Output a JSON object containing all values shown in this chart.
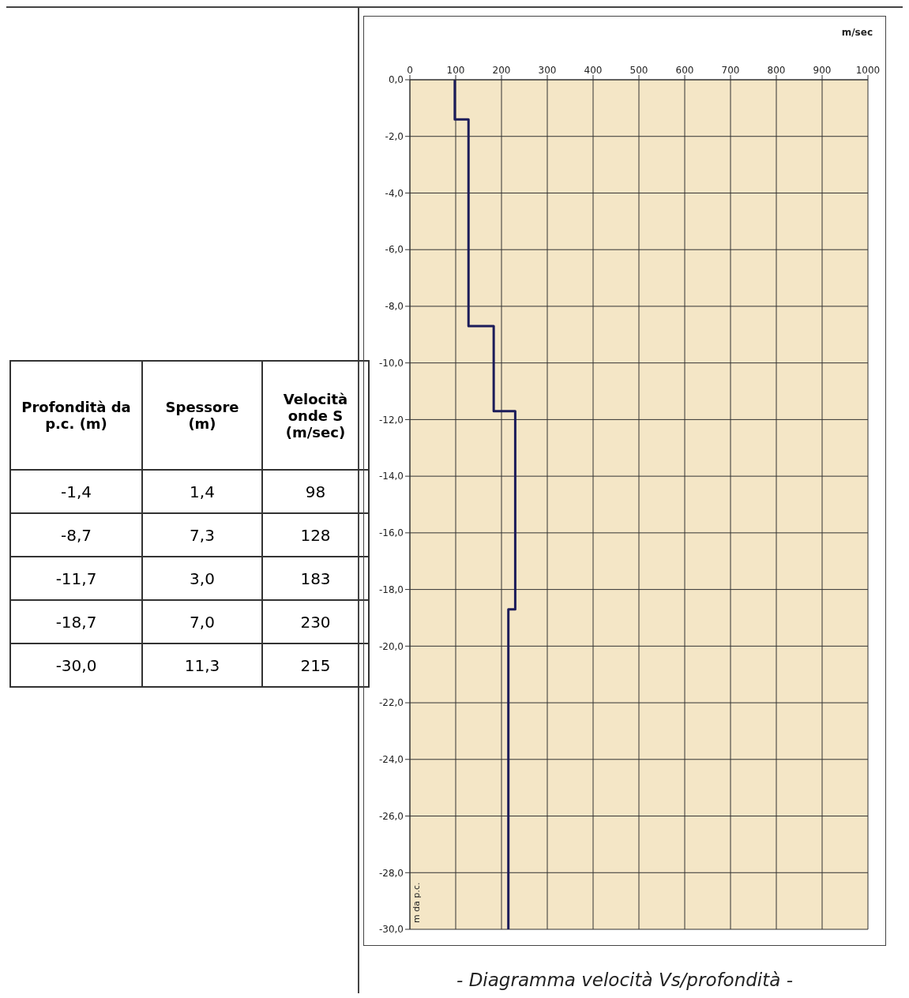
{
  "chart_data": [
    {
      "type": "other",
      "categories": [
        "Profondità da p.c. (m)",
        "Spessore (m)",
        "Velocità onde S (m/sec)"
      ],
      "cell_labels": [
        [
          "-1,4",
          "1,4",
          "98"
        ],
        [
          "-8,7",
          "7,3",
          "128"
        ],
        [
          "-11,7",
          "3,0",
          "183"
        ],
        [
          "-18,7",
          "7,0",
          "230"
        ],
        [
          "-30,0",
          "11,3",
          "215"
        ]
      ]
    },
    {
      "type": "line",
      "title": "- Diagramma velocità Vs/profondità -",
      "xlabel": "m/sec",
      "ylabel": "m da p.c.",
      "series": [
        {
          "color": "#1c1c5a",
          "x": [
            98,
            98,
            128,
            128,
            183,
            183,
            230,
            230,
            215,
            215
          ],
          "values": [
            0,
            -1.4,
            -1.4,
            -8.7,
            -8.7,
            -11.7,
            -11.7,
            -18.7,
            -18.7,
            -30
          ]
        }
      ],
      "xlim": [
        0,
        1000
      ],
      "xticks": [
        0,
        100,
        200,
        300,
        400,
        500,
        600,
        700,
        800,
        900,
        1000
      ],
      "ylim": [
        -30,
        0
      ],
      "yticks": [
        {
          "value": 0,
          "label": "0,0"
        },
        {
          "value": -2,
          "label": "-2,0"
        },
        {
          "value": -4,
          "label": "-4,0"
        },
        {
          "value": -6,
          "label": "-6,0"
        },
        {
          "value": -8,
          "label": "-8,0"
        },
        {
          "value": -10,
          "label": "-10,0"
        },
        {
          "value": -12,
          "label": "-12,0"
        },
        {
          "value": -14,
          "label": "-14,0"
        },
        {
          "value": -16,
          "label": "-16,0"
        },
        {
          "value": -18,
          "label": "-18,0"
        },
        {
          "value": -20,
          "label": "-20,0"
        },
        {
          "value": -22,
          "label": "-22,0"
        },
        {
          "value": -24,
          "label": "-24,0"
        },
        {
          "value": -26,
          "label": "-26,0"
        },
        {
          "value": -28,
          "label": "-28,0"
        },
        {
          "value": -30,
          "label": "-30,0"
        }
      ],
      "grid": true,
      "marker": "none",
      "line_style": "solid"
    }
  ]
}
